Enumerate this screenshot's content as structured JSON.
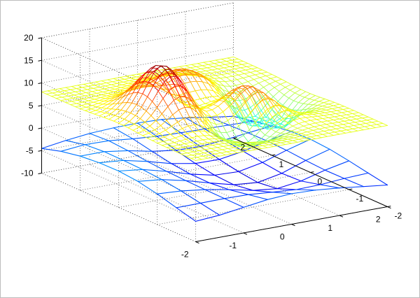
{
  "chart_data": {
    "type": "surface_mesh",
    "title": "",
    "xlabel": "",
    "ylabel": "",
    "zlabel": "",
    "x_ticks": [
      "-2",
      "-1",
      "0",
      "1",
      "2"
    ],
    "y_ticks": [
      "-2",
      "-1",
      "0",
      "1",
      "2"
    ],
    "z_ticks": [
      "-10",
      "-5",
      "0",
      "5",
      "10",
      "15",
      "20"
    ],
    "xlim": [
      -2,
      2
    ],
    "ylim": [
      -2,
      2
    ],
    "zlim": [
      -10,
      20
    ],
    "grid": true,
    "colormap": "jet",
    "upper_surface": {
      "description": "fine mesh over x,y in [-2,2]; z = 8 + peaks-like bumps",
      "grid_points": 33,
      "z_range": [
        2,
        21
      ]
    },
    "lower_surface": {
      "description": "coarse mesh over x,y in [-2,2]",
      "grid_points": 9,
      "z_range": [
        -9,
        0
      ]
    },
    "colors": {
      "axes": "#000000",
      "grid": "#555555",
      "frame": "#bdbdbd"
    }
  }
}
